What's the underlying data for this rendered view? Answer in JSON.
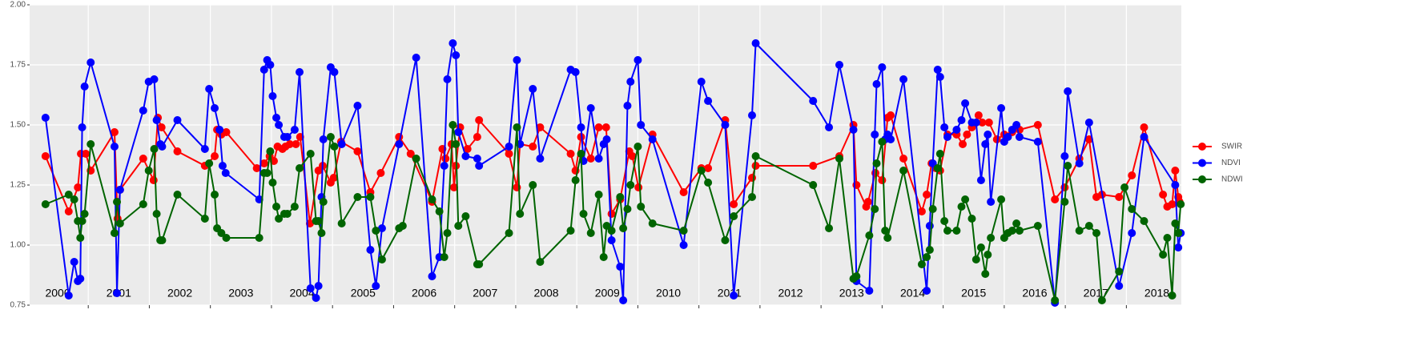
{
  "chart_data": {
    "type": "line",
    "ylim": [
      0.75,
      2.0
    ],
    "yticks": [
      0.75,
      {
        "value": 1.0,
        "label": "1.00"
      },
      1.25,
      {
        "value": 1.5,
        "label": "1.50"
      },
      1.75,
      {
        "value": 2.0,
        "label": "2.00"
      }
    ],
    "xlim": [
      2000.04,
      2018.9
    ],
    "xticks": [
      2001,
      2002,
      2003,
      2004,
      2005,
      2006,
      2007,
      2008,
      2009,
      2010,
      2011,
      2012,
      2013,
      2014,
      2015,
      2016,
      2017,
      2018
    ],
    "year_labels": [
      {
        "value": 2000.5,
        "label": "2000"
      },
      {
        "value": 2001.5,
        "label": "2001"
      },
      {
        "value": 2002.5,
        "label": "2002"
      },
      {
        "value": 2003.5,
        "label": "2003"
      },
      {
        "value": 2004.5,
        "label": "2004"
      },
      {
        "value": 2005.5,
        "label": "2005"
      },
      {
        "value": 2006.5,
        "label": "2006"
      },
      {
        "value": 2007.5,
        "label": "2007"
      },
      {
        "value": 2008.5,
        "label": "2008"
      },
      {
        "value": 2009.5,
        "label": "2009"
      },
      {
        "value": 2010.5,
        "label": "2010"
      },
      {
        "value": 2011.5,
        "label": "2011"
      },
      {
        "value": 2012.5,
        "label": "2012"
      },
      {
        "value": 2013.5,
        "label": "2013"
      },
      {
        "value": 2014.5,
        "label": "2014"
      },
      {
        "value": 2015.5,
        "label": "2015"
      },
      {
        "value": 2016.5,
        "label": "2016"
      },
      {
        "value": 2017.5,
        "label": "2017"
      },
      {
        "value": 2018.5,
        "label": "2018"
      }
    ],
    "grid": true,
    "legend": "right",
    "series": [
      {
        "name": "SWIR",
        "color": "#ff0000",
        "x": [
          2000.3,
          2000.68,
          2000.83,
          2000.88,
          2000.96,
          2001.04,
          2001.43,
          2001.48,
          2001.52,
          2001.9,
          2002.07,
          2002.14,
          2002.2,
          2002.46,
          2002.91,
          2003.07,
          2003.11,
          2003.18,
          2003.26,
          2003.76,
          2003.88,
          2003.97,
          2004.04,
          2004.1,
          2004.18,
          2004.23,
          2004.3,
          2004.4,
          2004.47,
          2004.63,
          2004.77,
          2004.84,
          2004.97,
          2005.02,
          2005.14,
          2005.41,
          2005.62,
          2005.79,
          2006.09,
          2006.28,
          2006.63,
          2006.8,
          2006.85,
          2006.95,
          2006.99,
          2007.02,
          2007.09,
          2007.21,
          2007.37,
          2007.4,
          2007.89,
          2008.02,
          2008.07,
          2008.28,
          2008.4,
          2008.9,
          2008.98,
          2009.07,
          2009.23,
          2009.36,
          2009.48,
          2009.57,
          2009.71,
          2009.86,
          2009.91,
          2010.01,
          2010.24,
          2010.75,
          2011.04,
          2011.15,
          2011.43,
          2011.57,
          2011.87,
          2011.93,
          2012.87,
          2013.3,
          2013.53,
          2013.58,
          2013.74,
          2013.77,
          2013.89,
          2014.0,
          2014.09,
          2014.14,
          2014.35,
          2014.65,
          2014.73,
          2014.81,
          2014.88,
          2014.95,
          2015.07,
          2015.22,
          2015.32,
          2015.39,
          2015.47,
          2015.58,
          2015.64,
          2015.75,
          2015.88,
          2016.0,
          2016.13,
          2016.25,
          2016.55,
          2016.83,
          2016.99,
          2017.23,
          2017.39,
          2017.51,
          2017.6,
          2017.88,
          2018.09,
          2018.29,
          2018.6,
          2018.67,
          2018.75,
          2018.8,
          2018.85,
          2018.87
        ],
        "values": [
          1.37,
          1.14,
          1.24,
          1.38,
          1.38,
          1.31,
          1.47,
          1.11,
          1.23,
          1.36,
          1.27,
          1.53,
          1.49,
          1.39,
          1.33,
          1.37,
          1.48,
          1.46,
          1.47,
          1.32,
          1.34,
          1.37,
          1.35,
          1.41,
          1.4,
          1.41,
          1.42,
          1.42,
          1.45,
          1.09,
          1.31,
          1.33,
          1.26,
          1.28,
          1.43,
          1.39,
          1.22,
          1.3,
          1.45,
          1.38,
          1.18,
          1.4,
          1.36,
          1.42,
          1.24,
          1.33,
          1.49,
          1.4,
          1.45,
          1.52,
          1.38,
          1.24,
          1.42,
          1.41,
          1.49,
          1.38,
          1.31,
          1.45,
          1.36,
          1.49,
          1.49,
          1.13,
          1.19,
          1.39,
          1.37,
          1.24,
          1.46,
          1.22,
          1.32,
          1.32,
          1.52,
          1.17,
          1.28,
          1.33,
          1.33,
          1.37,
          1.5,
          1.25,
          1.16,
          1.18,
          1.3,
          1.27,
          1.53,
          1.54,
          1.36,
          1.14,
          1.21,
          1.34,
          1.32,
          1.31,
          1.46,
          1.46,
          1.42,
          1.46,
          1.49,
          1.54,
          1.51,
          1.51,
          1.44,
          1.46,
          1.47,
          1.48,
          1.5,
          1.19,
          1.24,
          1.36,
          1.44,
          1.2,
          1.21,
          1.2,
          1.29,
          1.49,
          1.21,
          1.16,
          1.17,
          1.31,
          1.2,
          1.18
        ]
      },
      {
        "name": "NDVI",
        "color": "#0000ff",
        "x": [
          2000.3,
          2000.68,
          2000.77,
          2000.83,
          2000.87,
          2000.9,
          2000.94,
          2001.04,
          2001.43,
          2001.47,
          2001.52,
          2001.9,
          2001.99,
          2002.08,
          2002.12,
          2002.18,
          2002.21,
          2002.46,
          2002.91,
          2002.98,
          2003.07,
          2003.15,
          2003.2,
          2003.25,
          2003.8,
          2003.88,
          2003.93,
          2003.98,
          2004.02,
          2004.08,
          2004.12,
          2004.21,
          2004.26,
          2004.38,
          2004.46,
          2004.64,
          2004.73,
          2004.77,
          2004.82,
          2004.85,
          2004.97,
          2005.03,
          2005.15,
          2005.41,
          2005.62,
          2005.71,
          2005.81,
          2006.09,
          2006.37,
          2006.63,
          2006.75,
          2006.83,
          2006.88,
          2006.97,
          2007.02,
          2007.06,
          2007.18,
          2007.37,
          2007.4,
          2007.89,
          2008.02,
          2008.07,
          2008.28,
          2008.4,
          2008.9,
          2008.98,
          2009.07,
          2009.11,
          2009.23,
          2009.36,
          2009.44,
          2009.49,
          2009.57,
          2009.71,
          2009.76,
          2009.83,
          2009.88,
          2010.0,
          2010.05,
          2010.24,
          2010.75,
          2011.04,
          2011.15,
          2011.43,
          2011.57,
          2011.87,
          2011.93,
          2012.87,
          2013.13,
          2013.3,
          2013.53,
          2013.58,
          2013.79,
          2013.88,
          2013.91,
          2014.0,
          2014.05,
          2014.09,
          2014.14,
          2014.35,
          2014.73,
          2014.78,
          2014.83,
          2014.91,
          2014.95,
          2015.02,
          2015.07,
          2015.22,
          2015.3,
          2015.36,
          2015.47,
          2015.54,
          2015.62,
          2015.69,
          2015.73,
          2015.78,
          2015.95,
          2016.0,
          2016.06,
          2016.13,
          2016.2,
          2016.25,
          2016.55,
          2016.83,
          2016.99,
          2017.04,
          2017.23,
          2017.39,
          2017.88,
          2018.09,
          2018.29,
          2018.8,
          2018.85,
          2018.89
        ],
        "values": [
          1.53,
          0.79,
          0.93,
          0.85,
          0.86,
          1.49,
          1.66,
          1.76,
          1.41,
          0.8,
          1.23,
          1.56,
          1.68,
          1.69,
          1.52,
          1.42,
          1.41,
          1.52,
          1.4,
          1.65,
          1.57,
          1.48,
          1.33,
          1.3,
          1.19,
          1.73,
          1.77,
          1.75,
          1.62,
          1.53,
          1.5,
          1.45,
          1.45,
          1.48,
          1.72,
          0.82,
          0.78,
          0.83,
          1.2,
          1.44,
          1.74,
          1.72,
          1.42,
          1.58,
          0.98,
          0.83,
          1.07,
          1.42,
          1.78,
          0.87,
          0.95,
          1.33,
          1.69,
          1.84,
          1.79,
          1.47,
          1.37,
          1.36,
          1.33,
          1.41,
          1.77,
          1.42,
          1.65,
          1.36,
          1.73,
          1.72,
          1.49,
          1.35,
          1.57,
          1.36,
          1.42,
          1.44,
          1.02,
          0.91,
          0.77,
          1.58,
          1.68,
          1.77,
          1.5,
          1.44,
          1.0,
          1.68,
          1.6,
          1.5,
          0.79,
          1.54,
          1.84,
          1.6,
          1.49,
          1.75,
          1.48,
          0.85,
          0.81,
          1.46,
          1.67,
          1.74,
          1.44,
          1.46,
          1.44,
          1.69,
          0.81,
          1.08,
          1.34,
          1.73,
          1.7,
          1.49,
          1.45,
          1.48,
          1.52,
          1.59,
          1.51,
          1.51,
          1.27,
          1.42,
          1.46,
          1.18,
          1.57,
          1.43,
          1.45,
          1.48,
          1.5,
          1.45,
          1.43,
          0.76,
          1.37,
          1.64,
          1.34,
          1.51,
          0.83,
          1.05,
          1.45,
          1.25,
          0.99,
          1.05
        ]
      },
      {
        "name": "NDWI",
        "color": "#006400",
        "x": [
          2000.3,
          2000.68,
          2000.77,
          2000.83,
          2000.87,
          2000.9,
          2000.94,
          2001.04,
          2001.43,
          2001.47,
          2001.52,
          2001.9,
          2001.99,
          2002.08,
          2002.12,
          2002.18,
          2002.21,
          2002.46,
          2002.91,
          2002.98,
          2003.07,
          2003.11,
          2003.18,
          2003.26,
          2003.8,
          2003.88,
          2003.93,
          2003.98,
          2004.02,
          2004.08,
          2004.12,
          2004.21,
          2004.26,
          2004.38,
          2004.46,
          2004.64,
          2004.73,
          2004.77,
          2004.82,
          2004.85,
          2004.97,
          2005.03,
          2005.15,
          2005.41,
          2005.62,
          2005.71,
          2005.81,
          2006.09,
          2006.15,
          2006.37,
          2006.63,
          2006.75,
          2006.83,
          2006.88,
          2006.97,
          2007.02,
          2007.06,
          2007.18,
          2007.37,
          2007.4,
          2007.89,
          2008.02,
          2008.07,
          2008.28,
          2008.4,
          2008.9,
          2008.98,
          2009.07,
          2009.11,
          2009.23,
          2009.36,
          2009.44,
          2009.49,
          2009.57,
          2009.71,
          2009.76,
          2009.83,
          2009.88,
          2010.0,
          2010.05,
          2010.24,
          2010.75,
          2011.04,
          2011.15,
          2011.43,
          2011.57,
          2011.87,
          2011.93,
          2012.87,
          2013.13,
          2013.3,
          2013.53,
          2013.58,
          2013.79,
          2013.88,
          2013.91,
          2014.0,
          2014.05,
          2014.09,
          2014.35,
          2014.65,
          2014.73,
          2014.78,
          2014.83,
          2014.91,
          2014.95,
          2015.02,
          2015.07,
          2015.22,
          2015.3,
          2015.36,
          2015.47,
          2015.54,
          2015.62,
          2015.69,
          2015.73,
          2015.78,
          2015.95,
          2016.0,
          2016.06,
          2016.13,
          2016.2,
          2016.25,
          2016.55,
          2016.83,
          2016.99,
          2017.04,
          2017.23,
          2017.39,
          2017.51,
          2017.6,
          2017.88,
          2017.97,
          2018.09,
          2018.29,
          2018.6,
          2018.67,
          2018.75,
          2018.8,
          2018.85,
          2018.89
        ],
        "values": [
          1.17,
          1.21,
          1.19,
          1.1,
          1.03,
          1.1,
          1.13,
          1.42,
          1.05,
          1.18,
          1.09,
          1.17,
          1.31,
          1.4,
          1.13,
          1.02,
          1.02,
          1.21,
          1.11,
          1.34,
          1.21,
          1.07,
          1.05,
          1.03,
          1.03,
          1.3,
          1.3,
          1.39,
          1.26,
          1.16,
          1.11,
          1.13,
          1.13,
          1.16,
          1.32,
          1.38,
          1.1,
          1.1,
          1.05,
          1.18,
          1.45,
          1.41,
          1.09,
          1.2,
          1.2,
          1.06,
          0.94,
          1.07,
          1.08,
          1.36,
          1.19,
          1.14,
          0.95,
          1.05,
          1.5,
          1.42,
          1.08,
          1.12,
          0.92,
          0.92,
          1.05,
          1.49,
          1.13,
          1.25,
          0.93,
          1.06,
          1.27,
          1.38,
          1.13,
          1.05,
          1.21,
          0.95,
          1.08,
          1.06,
          1.2,
          1.07,
          1.15,
          1.25,
          1.41,
          1.16,
          1.09,
          1.06,
          1.31,
          1.26,
          1.02,
          1.12,
          1.2,
          1.37,
          1.25,
          1.07,
          1.36,
          0.86,
          0.87,
          1.04,
          1.15,
          1.34,
          1.43,
          1.06,
          1.03,
          1.31,
          0.92,
          0.95,
          0.98,
          1.15,
          1.32,
          1.38,
          1.1,
          1.06,
          1.06,
          1.16,
          1.19,
          1.11,
          0.94,
          0.99,
          0.88,
          0.96,
          1.03,
          1.19,
          1.03,
          1.05,
          1.06,
          1.09,
          1.06,
          1.08,
          0.77,
          1.18,
          1.33,
          1.06,
          1.08,
          1.05,
          0.77,
          0.89,
          1.24,
          1.15,
          1.1,
          0.96,
          1.03,
          0.79,
          1.09,
          1.05,
          1.17
        ]
      }
    ]
  }
}
